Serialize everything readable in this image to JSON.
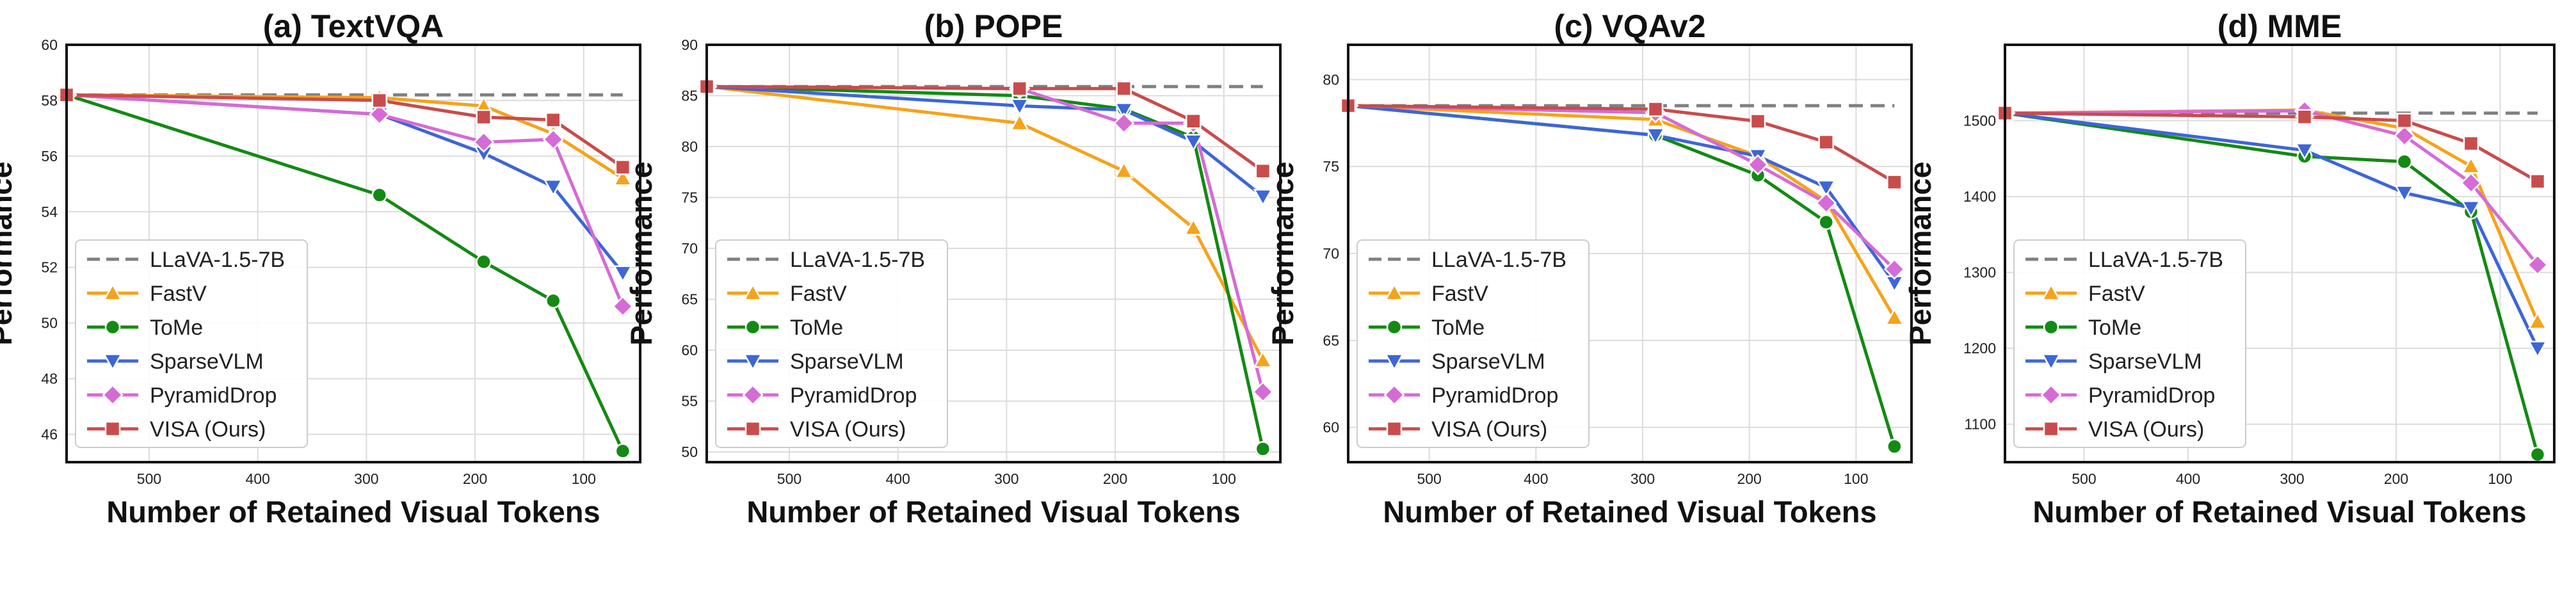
{
  "figure": {
    "colors": {
      "LLaVA-1.5-7B": "#808080",
      "FastV": "#f5a31a",
      "ToMe": "#138a13",
      "SparseVLM": "#3d66d6",
      "PyramidDrop": "#d66ad6",
      "VISA (Ours)": "#c94c4c"
    }
  },
  "chart_data": [
    {
      "type": "line",
      "title": "(a) TextVQA",
      "xlabel": "Number of Retained Visual Tokens",
      "ylabel": "Performance",
      "x_inverted": true,
      "xlim": [
        576,
        48
      ],
      "ylim": [
        45,
        60
      ],
      "xticks": [
        500,
        400,
        300,
        200,
        100
      ],
      "yticks": [
        46,
        48,
        50,
        52,
        54,
        56,
        58,
        60
      ],
      "grid": true,
      "legend": {
        "position": "bottom-left",
        "entries": [
          "LLaVA-1.5-7B",
          "FastV",
          "ToMe",
          "SparseVLM",
          "PyramidDrop",
          "VISA (Ours)"
        ]
      },
      "series": [
        {
          "name": "LLaVA-1.5-7B",
          "style": "dashed",
          "marker": "none",
          "x": [
            576,
            64
          ],
          "y": [
            58.2,
            58.2
          ]
        },
        {
          "name": "FastV",
          "marker": "triangle-up",
          "x": [
            576,
            288,
            192,
            128,
            64
          ],
          "y": [
            58.2,
            58.1,
            57.8,
            56.8,
            55.2
          ]
        },
        {
          "name": "ToMe",
          "marker": "circle",
          "x": [
            576,
            288,
            192,
            128,
            64
          ],
          "y": [
            58.2,
            54.6,
            52.2,
            50.8,
            45.4
          ]
        },
        {
          "name": "SparseVLM",
          "marker": "triangle-down",
          "x": [
            576,
            288,
            192,
            128,
            64
          ],
          "y": [
            58.2,
            57.5,
            56.1,
            54.9,
            51.8
          ]
        },
        {
          "name": "PyramidDrop",
          "marker": "diamond",
          "x": [
            576,
            288,
            192,
            128,
            64
          ],
          "y": [
            58.2,
            57.5,
            56.5,
            56.6,
            50.6
          ]
        },
        {
          "name": "VISA (Ours)",
          "marker": "square",
          "x": [
            576,
            288,
            192,
            128,
            64
          ],
          "y": [
            58.2,
            58.0,
            57.4,
            57.3,
            55.6
          ]
        }
      ]
    },
    {
      "type": "line",
      "title": "(b) POPE",
      "xlabel": "Number of Retained Visual Tokens",
      "ylabel": "Performance",
      "x_inverted": true,
      "xlim": [
        576,
        48
      ],
      "ylim": [
        49,
        90
      ],
      "xticks": [
        500,
        400,
        300,
        200,
        100
      ],
      "yticks": [
        50,
        55,
        60,
        65,
        70,
        75,
        80,
        85,
        90
      ],
      "grid": true,
      "legend": {
        "position": "bottom-left",
        "entries": [
          "LLaVA-1.5-7B",
          "FastV",
          "ToMe",
          "SparseVLM",
          "PyramidDrop",
          "VISA (Ours)"
        ]
      },
      "series": [
        {
          "name": "LLaVA-1.5-7B",
          "style": "dashed",
          "marker": "none",
          "x": [
            576,
            64
          ],
          "y": [
            85.9,
            85.9
          ]
        },
        {
          "name": "FastV",
          "marker": "triangle-up",
          "x": [
            576,
            288,
            192,
            128,
            64
          ],
          "y": [
            85.9,
            82.3,
            77.6,
            72.0,
            59.0
          ]
        },
        {
          "name": "ToMe",
          "marker": "circle",
          "x": [
            576,
            288,
            192,
            128,
            64
          ],
          "y": [
            85.9,
            85.0,
            83.7,
            80.9,
            50.3
          ]
        },
        {
          "name": "SparseVLM",
          "marker": "triangle-down",
          "x": [
            576,
            288,
            192,
            128,
            64
          ],
          "y": [
            85.9,
            84.0,
            83.6,
            80.5,
            75.1
          ]
        },
        {
          "name": "PyramidDrop",
          "marker": "diamond",
          "x": [
            576,
            288,
            192,
            128,
            64
          ],
          "y": [
            85.9,
            85.7,
            82.3,
            82.3,
            55.9
          ]
        },
        {
          "name": "VISA (Ours)",
          "marker": "square",
          "x": [
            576,
            288,
            192,
            128,
            64
          ],
          "y": [
            85.9,
            85.7,
            85.7,
            82.5,
            77.6
          ]
        }
      ]
    },
    {
      "type": "line",
      "title": "(c) VQAv2",
      "xlabel": "Number of Retained Visual Tokens",
      "ylabel": "Performance",
      "x_inverted": true,
      "xlim": [
        576,
        48
      ],
      "ylim": [
        58,
        82
      ],
      "xticks": [
        500,
        400,
        300,
        200,
        100
      ],
      "yticks": [
        60,
        65,
        70,
        75,
        80
      ],
      "grid": true,
      "legend": {
        "position": "bottom-left",
        "entries": [
          "LLaVA-1.5-7B",
          "FastV",
          "ToMe",
          "SparseVLM",
          "PyramidDrop",
          "VISA (Ours)"
        ]
      },
      "series": [
        {
          "name": "LLaVA-1.5-7B",
          "style": "dashed",
          "marker": "none",
          "x": [
            576,
            64
          ],
          "y": [
            78.5,
            78.5
          ]
        },
        {
          "name": "FastV",
          "marker": "triangle-up",
          "x": [
            576,
            288,
            192,
            128,
            64
          ],
          "y": [
            78.5,
            77.7,
            75.6,
            73.0,
            66.3
          ]
        },
        {
          "name": "ToMe",
          "marker": "circle",
          "x": [
            576,
            288,
            192,
            128,
            64
          ],
          "y": [
            78.5,
            76.8,
            74.5,
            71.8,
            58.9
          ]
        },
        {
          "name": "SparseVLM",
          "marker": "triangle-down",
          "x": [
            576,
            288,
            192,
            128,
            64
          ],
          "y": [
            78.5,
            76.8,
            75.6,
            73.8,
            68.3
          ]
        },
        {
          "name": "PyramidDrop",
          "marker": "diamond",
          "x": [
            576,
            288,
            192,
            128,
            64
          ],
          "y": [
            78.5,
            78.1,
            75.1,
            72.9,
            69.1
          ]
        },
        {
          "name": "VISA (Ours)",
          "marker": "square",
          "x": [
            576,
            288,
            192,
            128,
            64
          ],
          "y": [
            78.5,
            78.3,
            77.6,
            76.4,
            74.1
          ]
        }
      ]
    },
    {
      "type": "line",
      "title": "(d) MME",
      "xlabel": "Number of Retained Visual Tokens",
      "ylabel": "Performance",
      "x_inverted": true,
      "xlim": [
        576,
        48
      ],
      "ylim": [
        1050,
        1600
      ],
      "xticks": [
        500,
        400,
        300,
        200,
        100
      ],
      "yticks": [
        1100,
        1200,
        1300,
        1400,
        1500
      ],
      "grid": true,
      "legend": {
        "position": "bottom-left",
        "entries": [
          "LLaVA-1.5-7B",
          "FastV",
          "ToMe",
          "SparseVLM",
          "PyramidDrop",
          "VISA (Ours)"
        ]
      },
      "series": [
        {
          "name": "LLaVA-1.5-7B",
          "style": "dashed",
          "marker": "none",
          "x": [
            576,
            64
          ],
          "y": [
            1510,
            1510
          ]
        },
        {
          "name": "FastV",
          "marker": "triangle-up",
          "x": [
            576,
            288,
            192,
            128,
            64
          ],
          "y": [
            1510,
            1514,
            1490,
            1440,
            1235
          ]
        },
        {
          "name": "ToMe",
          "marker": "circle",
          "x": [
            576,
            288,
            192,
            128,
            64
          ],
          "y": [
            1510,
            1453,
            1446,
            1380,
            1060
          ]
        },
        {
          "name": "SparseVLM",
          "marker": "triangle-down",
          "x": [
            576,
            288,
            192,
            128,
            64
          ],
          "y": [
            1510,
            1461,
            1405,
            1385,
            1200
          ]
        },
        {
          "name": "PyramidDrop",
          "marker": "diamond",
          "x": [
            576,
            288,
            192,
            128,
            64
          ],
          "y": [
            1510,
            1513,
            1480,
            1418,
            1310
          ]
        },
        {
          "name": "VISA (Ours)",
          "marker": "square",
          "x": [
            576,
            288,
            192,
            128,
            64
          ],
          "y": [
            1510,
            1505,
            1500,
            1470,
            1420
          ]
        }
      ]
    }
  ]
}
